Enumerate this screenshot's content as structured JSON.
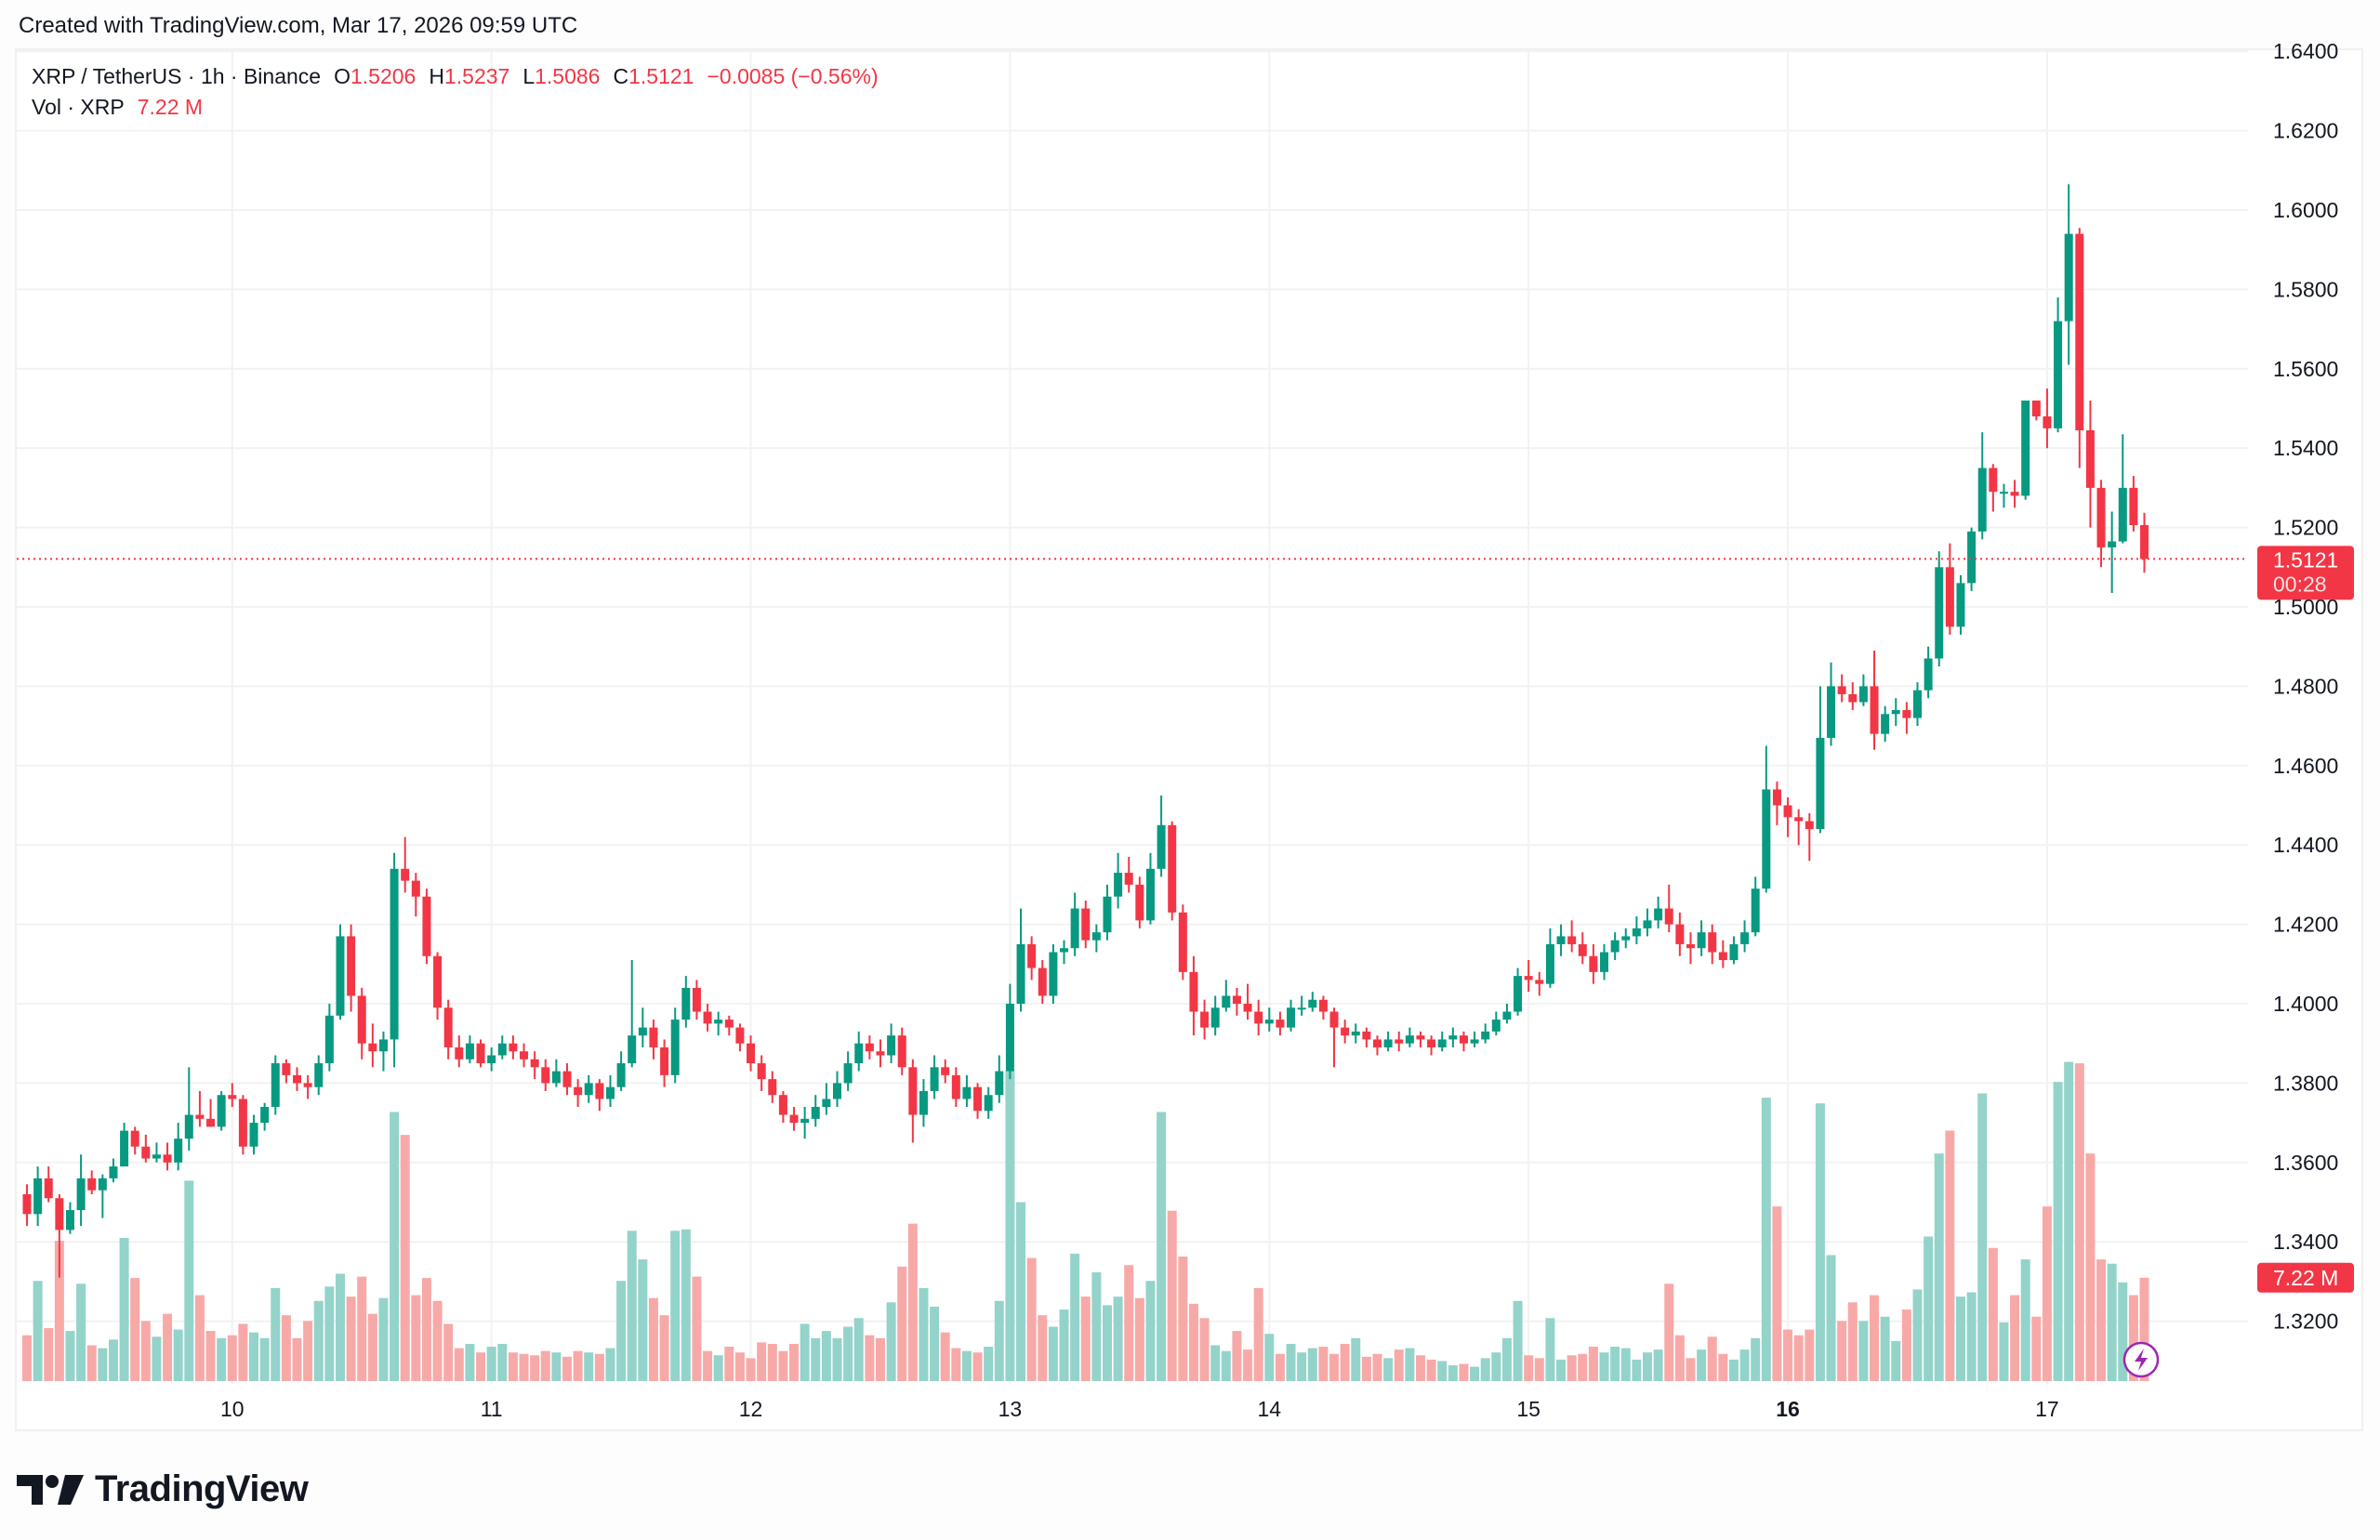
{
  "header": {
    "created_text": "Created with TradingView.com, Mar 17, 2026 09:59 UTC"
  },
  "legend": {
    "symbol": "XRP / TetherUS · 1h · Binance",
    "o_label": "O",
    "o": "1.5206",
    "h_label": "H",
    "h": "1.5237",
    "l_label": "L",
    "l": "1.5086",
    "c_label": "C",
    "c": "1.5121",
    "change": "−0.0085 (−0.56%)",
    "vol_label": "Vol · XRP",
    "vol": "7.22 M"
  },
  "logo": {
    "text": "TradingView"
  },
  "colors": {
    "up": "#089981",
    "down": "#f23645",
    "vol_up": "#93d3ca",
    "vol_down": "#f7a9a8",
    "grid": "#f2f2f2",
    "alert": "#9c27b0"
  },
  "chart_data": {
    "type": "candlestick",
    "title": "XRP / TetherUS · 1h · Binance",
    "interval": "1h",
    "ylim": [
      1.3,
      1.645
    ],
    "grid": true,
    "y_ticks": [
      "1.6400",
      "1.6200",
      "1.6000",
      "1.5800",
      "1.5600",
      "1.5400",
      "1.5200",
      "1.5000",
      "1.4800",
      "1.4600",
      "1.4400",
      "1.4200",
      "1.4000",
      "1.3800",
      "1.3600",
      "1.3400",
      "1.3200"
    ],
    "x_ticks": [
      {
        "label": "10",
        "index": 19,
        "bold": false
      },
      {
        "label": "11",
        "index": 43,
        "bold": false
      },
      {
        "label": "12",
        "index": 67,
        "bold": false
      },
      {
        "label": "13",
        "index": 91,
        "bold": false
      },
      {
        "label": "14",
        "index": 115,
        "bold": false
      },
      {
        "label": "15",
        "index": 139,
        "bold": false
      },
      {
        "label": "16",
        "index": 163,
        "bold": true
      },
      {
        "label": "17",
        "index": 187,
        "bold": false
      }
    ],
    "last_price": {
      "price": "1.5121",
      "countdown": "00:28",
      "value": 1.5121
    },
    "last_volume": {
      "label": "7.22 M",
      "value": 7.22
    },
    "columns": [
      "open",
      "high",
      "low",
      "close",
      "volume_millions"
    ],
    "candles": [
      [
        1.352,
        1.3545,
        1.344,
        1.347,
        3.2
      ],
      [
        1.347,
        1.359,
        1.344,
        1.356,
        7.0
      ],
      [
        1.356,
        1.359,
        1.35,
        1.351,
        3.7
      ],
      [
        1.351,
        1.352,
        1.331,
        1.343,
        9.8
      ],
      [
        1.343,
        1.35,
        1.342,
        1.348,
        3.5
      ],
      [
        1.348,
        1.362,
        1.344,
        1.356,
        6.8
      ],
      [
        1.356,
        1.358,
        1.352,
        1.353,
        2.5
      ],
      [
        1.353,
        1.357,
        1.346,
        1.356,
        2.3
      ],
      [
        1.356,
        1.361,
        1.355,
        1.359,
        2.9
      ],
      [
        1.359,
        1.37,
        1.359,
        1.368,
        10.0
      ],
      [
        1.368,
        1.369,
        1.362,
        1.364,
        7.2
      ],
      [
        1.364,
        1.367,
        1.36,
        1.361,
        4.2
      ],
      [
        1.361,
        1.365,
        1.36,
        1.362,
        3.1
      ],
      [
        1.362,
        1.365,
        1.358,
        1.36,
        4.7
      ],
      [
        1.36,
        1.37,
        1.358,
        1.366,
        3.6
      ],
      [
        1.366,
        1.384,
        1.363,
        1.372,
        14.0
      ],
      [
        1.372,
        1.378,
        1.369,
        1.371,
        6.0
      ],
      [
        1.371,
        1.376,
        1.369,
        1.369,
        3.5
      ],
      [
        1.369,
        1.378,
        1.368,
        1.377,
        3.0
      ],
      [
        1.377,
        1.38,
        1.374,
        1.376,
        3.2
      ],
      [
        1.376,
        1.377,
        1.362,
        1.364,
        4.0
      ],
      [
        1.364,
        1.372,
        1.362,
        1.37,
        3.4
      ],
      [
        1.37,
        1.375,
        1.368,
        1.374,
        3.0
      ],
      [
        1.374,
        1.387,
        1.372,
        1.385,
        6.5
      ],
      [
        1.385,
        1.386,
        1.38,
        1.382,
        4.6
      ],
      [
        1.382,
        1.384,
        1.378,
        1.38,
        3.0
      ],
      [
        1.38,
        1.382,
        1.376,
        1.379,
        4.2
      ],
      [
        1.379,
        1.387,
        1.377,
        1.385,
        5.6
      ],
      [
        1.385,
        1.4,
        1.383,
        1.397,
        6.6
      ],
      [
        1.397,
        1.42,
        1.396,
        1.417,
        7.5
      ],
      [
        1.417,
        1.42,
        1.398,
        1.402,
        5.9
      ],
      [
        1.402,
        1.404,
        1.386,
        1.39,
        7.3
      ],
      [
        1.39,
        1.395,
        1.384,
        1.388,
        4.7
      ],
      [
        1.388,
        1.393,
        1.383,
        1.391,
        5.8
      ],
      [
        1.391,
        1.438,
        1.384,
        1.434,
        18.8
      ],
      [
        1.434,
        1.442,
        1.428,
        1.431,
        17.2
      ],
      [
        1.431,
        1.433,
        1.422,
        1.427,
        6.0
      ],
      [
        1.427,
        1.429,
        1.41,
        1.412,
        7.2
      ],
      [
        1.412,
        1.413,
        1.396,
        1.399,
        5.6
      ],
      [
        1.399,
        1.401,
        1.386,
        1.389,
        4.0
      ],
      [
        1.389,
        1.392,
        1.384,
        1.386,
        2.3
      ],
      [
        1.386,
        1.392,
        1.385,
        1.39,
        2.6
      ],
      [
        1.39,
        1.391,
        1.384,
        1.385,
        2.0
      ],
      [
        1.385,
        1.389,
        1.383,
        1.387,
        2.4
      ],
      [
        1.387,
        1.392,
        1.386,
        1.39,
        2.6
      ],
      [
        1.39,
        1.392,
        1.386,
        1.388,
        2.0
      ],
      [
        1.388,
        1.39,
        1.384,
        1.386,
        1.9
      ],
      [
        1.386,
        1.388,
        1.381,
        1.384,
        1.8
      ],
      [
        1.384,
        1.386,
        1.378,
        1.38,
        2.1
      ],
      [
        1.38,
        1.386,
        1.379,
        1.383,
        2.0
      ],
      [
        1.383,
        1.385,
        1.377,
        1.379,
        1.7
      ],
      [
        1.379,
        1.381,
        1.374,
        1.377,
        2.1
      ],
      [
        1.377,
        1.382,
        1.375,
        1.38,
        2.0
      ],
      [
        1.38,
        1.381,
        1.373,
        1.376,
        1.9
      ],
      [
        1.376,
        1.382,
        1.374,
        1.379,
        2.3
      ],
      [
        1.379,
        1.388,
        1.378,
        1.385,
        7.0
      ],
      [
        1.385,
        1.411,
        1.384,
        1.392,
        10.5
      ],
      [
        1.392,
        1.399,
        1.389,
        1.394,
        8.5
      ],
      [
        1.394,
        1.396,
        1.386,
        1.389,
        5.8
      ],
      [
        1.389,
        1.391,
        1.379,
        1.382,
        4.6
      ],
      [
        1.382,
        1.399,
        1.38,
        1.396,
        10.5
      ],
      [
        1.396,
        1.407,
        1.394,
        1.404,
        10.6
      ],
      [
        1.404,
        1.406,
        1.396,
        1.398,
        7.3
      ],
      [
        1.398,
        1.4,
        1.393,
        1.395,
        2.1
      ],
      [
        1.395,
        1.398,
        1.392,
        1.396,
        1.8
      ],
      [
        1.396,
        1.397,
        1.392,
        1.394,
        2.4
      ],
      [
        1.394,
        1.395,
        1.388,
        1.39,
        2.0
      ],
      [
        1.39,
        1.392,
        1.383,
        1.385,
        1.6
      ],
      [
        1.385,
        1.387,
        1.378,
        1.381,
        2.7
      ],
      [
        1.381,
        1.383,
        1.375,
        1.377,
        2.6
      ],
      [
        1.377,
        1.378,
        1.37,
        1.372,
        2.1
      ],
      [
        1.372,
        1.374,
        1.368,
        1.37,
        2.6
      ],
      [
        1.37,
        1.374,
        1.366,
        1.371,
        4.0
      ],
      [
        1.371,
        1.377,
        1.369,
        1.374,
        3.0
      ],
      [
        1.374,
        1.38,
        1.372,
        1.376,
        3.5
      ],
      [
        1.376,
        1.383,
        1.374,
        1.38,
        3.0
      ],
      [
        1.38,
        1.388,
        1.378,
        1.385,
        3.8
      ],
      [
        1.385,
        1.393,
        1.383,
        1.39,
        4.4
      ],
      [
        1.39,
        1.392,
        1.386,
        1.388,
        3.2
      ],
      [
        1.388,
        1.391,
        1.384,
        1.387,
        3.0
      ],
      [
        1.387,
        1.395,
        1.385,
        1.392,
        5.5
      ],
      [
        1.392,
        1.394,
        1.382,
        1.384,
        8.0
      ],
      [
        1.384,
        1.386,
        1.365,
        1.372,
        11.0
      ],
      [
        1.372,
        1.381,
        1.369,
        1.378,
        6.5
      ],
      [
        1.378,
        1.387,
        1.376,
        1.384,
        5.2
      ],
      [
        1.384,
        1.386,
        1.38,
        1.382,
        3.4
      ],
      [
        1.382,
        1.384,
        1.374,
        1.376,
        2.3
      ],
      [
        1.376,
        1.382,
        1.374,
        1.379,
        2.1
      ],
      [
        1.379,
        1.38,
        1.371,
        1.373,
        2.0
      ],
      [
        1.373,
        1.379,
        1.371,
        1.377,
        2.4
      ],
      [
        1.377,
        1.387,
        1.375,
        1.383,
        5.6
      ],
      [
        1.383,
        1.405,
        1.381,
        1.4,
        21.7
      ],
      [
        1.4,
        1.424,
        1.398,
        1.415,
        12.5
      ],
      [
        1.415,
        1.417,
        1.406,
        1.409,
        8.6
      ],
      [
        1.409,
        1.411,
        1.4,
        1.402,
        4.6
      ],
      [
        1.402,
        1.415,
        1.4,
        1.413,
        3.8
      ],
      [
        1.413,
        1.416,
        1.41,
        1.414,
        5.0
      ],
      [
        1.414,
        1.428,
        1.412,
        1.424,
        8.9
      ],
      [
        1.424,
        1.426,
        1.414,
        1.416,
        5.9
      ],
      [
        1.416,
        1.42,
        1.413,
        1.418,
        7.6
      ],
      [
        1.418,
        1.43,
        1.416,
        1.427,
        5.3
      ],
      [
        1.427,
        1.438,
        1.424,
        1.433,
        5.9
      ],
      [
        1.433,
        1.437,
        1.428,
        1.43,
        8.1
      ],
      [
        1.43,
        1.432,
        1.419,
        1.421,
        5.8
      ],
      [
        1.421,
        1.438,
        1.42,
        1.434,
        7.0
      ],
      [
        1.434,
        1.4525,
        1.432,
        1.445,
        18.8
      ],
      [
        1.445,
        1.446,
        1.421,
        1.423,
        11.9
      ],
      [
        1.423,
        1.425,
        1.406,
        1.408,
        8.7
      ],
      [
        1.408,
        1.412,
        1.392,
        1.398,
        5.4
      ],
      [
        1.398,
        1.401,
        1.391,
        1.394,
        4.4
      ],
      [
        1.394,
        1.402,
        1.392,
        1.399,
        2.5
      ],
      [
        1.399,
        1.406,
        1.398,
        1.402,
        2.1
      ],
      [
        1.402,
        1.404,
        1.397,
        1.4,
        3.5
      ],
      [
        1.4,
        1.405,
        1.396,
        1.398,
        2.2
      ],
      [
        1.398,
        1.401,
        1.392,
        1.395,
        6.5
      ],
      [
        1.395,
        1.399,
        1.393,
        1.396,
        3.3
      ],
      [
        1.396,
        1.398,
        1.392,
        1.394,
        1.9
      ],
      [
        1.394,
        1.401,
        1.393,
        1.399,
        2.6
      ],
      [
        1.399,
        1.402,
        1.397,
        1.399,
        2.0
      ],
      [
        1.399,
        1.403,
        1.398,
        1.401,
        2.3
      ],
      [
        1.401,
        1.402,
        1.396,
        1.398,
        2.4
      ],
      [
        1.398,
        1.399,
        1.384,
        1.394,
        1.9
      ],
      [
        1.394,
        1.396,
        1.39,
        1.392,
        2.6
      ],
      [
        1.392,
        1.395,
        1.39,
        1.393,
        3.0
      ],
      [
        1.393,
        1.394,
        1.389,
        1.391,
        1.7
      ],
      [
        1.391,
        1.392,
        1.387,
        1.389,
        1.9
      ],
      [
        1.389,
        1.393,
        1.388,
        1.391,
        1.6
      ],
      [
        1.391,
        1.393,
        1.388,
        1.39,
        2.2
      ],
      [
        1.39,
        1.394,
        1.389,
        1.392,
        2.3
      ],
      [
        1.392,
        1.393,
        1.389,
        1.391,
        1.8
      ],
      [
        1.391,
        1.392,
        1.387,
        1.389,
        1.5
      ],
      [
        1.389,
        1.393,
        1.388,
        1.391,
        1.4
      ],
      [
        1.391,
        1.394,
        1.389,
        1.392,
        1.1
      ],
      [
        1.392,
        1.393,
        1.388,
        1.39,
        1.2
      ],
      [
        1.39,
        1.393,
        1.389,
        1.391,
        1.0
      ],
      [
        1.391,
        1.395,
        1.39,
        1.393,
        1.6
      ],
      [
        1.393,
        1.398,
        1.392,
        1.396,
        2.0
      ],
      [
        1.396,
        1.4,
        1.395,
        1.398,
        3.0
      ],
      [
        1.398,
        1.409,
        1.397,
        1.407,
        5.6
      ],
      [
        1.407,
        1.411,
        1.403,
        1.406,
        1.8
      ],
      [
        1.406,
        1.408,
        1.402,
        1.405,
        1.6
      ],
      [
        1.405,
        1.419,
        1.404,
        1.415,
        4.4
      ],
      [
        1.415,
        1.42,
        1.412,
        1.417,
        1.5
      ],
      [
        1.417,
        1.421,
        1.413,
        1.415,
        1.8
      ],
      [
        1.415,
        1.418,
        1.41,
        1.412,
        1.9
      ],
      [
        1.412,
        1.415,
        1.405,
        1.408,
        2.4
      ],
      [
        1.408,
        1.415,
        1.406,
        1.413,
        2.0
      ],
      [
        1.413,
        1.418,
        1.411,
        1.416,
        2.4
      ],
      [
        1.416,
        1.419,
        1.414,
        1.417,
        2.3
      ],
      [
        1.417,
        1.422,
        1.415,
        1.419,
        1.5
      ],
      [
        1.419,
        1.424,
        1.417,
        1.421,
        2.0
      ],
      [
        1.421,
        1.427,
        1.419,
        1.424,
        2.2
      ],
      [
        1.424,
        1.43,
        1.418,
        1.42,
        6.8
      ],
      [
        1.42,
        1.423,
        1.412,
        1.415,
        3.2
      ],
      [
        1.415,
        1.418,
        1.41,
        1.414,
        1.6
      ],
      [
        1.414,
        1.421,
        1.412,
        1.418,
        2.2
      ],
      [
        1.418,
        1.42,
        1.41,
        1.413,
        3.1
      ],
      [
        1.413,
        1.416,
        1.409,
        1.411,
        1.9
      ],
      [
        1.411,
        1.417,
        1.41,
        1.415,
        1.5
      ],
      [
        1.415,
        1.421,
        1.413,
        1.418,
        2.2
      ],
      [
        1.418,
        1.432,
        1.417,
        1.429,
        3.0
      ],
      [
        1.429,
        1.465,
        1.428,
        1.454,
        19.8
      ],
      [
        1.454,
        1.456,
        1.445,
        1.45,
        12.2
      ],
      [
        1.45,
        1.452,
        1.442,
        1.447,
        3.6
      ],
      [
        1.447,
        1.449,
        1.44,
        1.446,
        3.2
      ],
      [
        1.446,
        1.448,
        1.436,
        1.444,
        3.6
      ],
      [
        1.444,
        1.48,
        1.443,
        1.467,
        19.4
      ],
      [
        1.467,
        1.486,
        1.465,
        1.48,
        8.8
      ],
      [
        1.48,
        1.483,
        1.476,
        1.478,
        4.2
      ],
      [
        1.478,
        1.481,
        1.474,
        1.476,
        5.5
      ],
      [
        1.476,
        1.483,
        1.475,
        1.48,
        4.2
      ],
      [
        1.48,
        1.489,
        1.464,
        1.468,
        6.0
      ],
      [
        1.468,
        1.475,
        1.466,
        1.473,
        4.5
      ],
      [
        1.473,
        1.477,
        1.47,
        1.474,
        2.8
      ],
      [
        1.474,
        1.476,
        1.468,
        1.472,
        5.0
      ],
      [
        1.472,
        1.481,
        1.47,
        1.479,
        6.4
      ],
      [
        1.479,
        1.49,
        1.477,
        1.487,
        10.1
      ],
      [
        1.487,
        1.514,
        1.485,
        1.51,
        15.9
      ],
      [
        1.51,
        1.516,
        1.493,
        1.495,
        17.5
      ],
      [
        1.495,
        1.508,
        1.493,
        1.506,
        5.9
      ],
      [
        1.506,
        1.52,
        1.504,
        1.519,
        6.2
      ],
      [
        1.519,
        1.544,
        1.517,
        1.535,
        20.1
      ],
      [
        1.535,
        1.536,
        1.524,
        1.529,
        9.3
      ],
      [
        1.529,
        1.531,
        1.525,
        1.529,
        4.1
      ],
      [
        1.529,
        1.532,
        1.525,
        1.528,
        6.0
      ],
      [
        1.528,
        1.552,
        1.527,
        1.552,
        8.5
      ],
      [
        1.552,
        1.552,
        1.547,
        1.548,
        4.5
      ],
      [
        1.548,
        1.555,
        1.54,
        1.545,
        12.2
      ],
      [
        1.545,
        1.578,
        1.544,
        1.572,
        20.9
      ],
      [
        1.572,
        1.6065,
        1.561,
        1.594,
        22.3
      ],
      [
        1.594,
        1.5955,
        1.535,
        1.5445,
        22.2
      ],
      [
        1.5445,
        1.552,
        1.52,
        1.53,
        15.9
      ],
      [
        1.53,
        1.532,
        1.51,
        1.515,
        8.5
      ],
      [
        1.515,
        1.524,
        1.5035,
        1.5165,
        8.2
      ],
      [
        1.5165,
        1.5435,
        1.516,
        1.53,
        6.9
      ],
      [
        1.53,
        1.533,
        1.519,
        1.5206,
        6.0
      ],
      [
        1.5206,
        1.5237,
        1.5086,
        1.5121,
        7.22
      ]
    ]
  }
}
